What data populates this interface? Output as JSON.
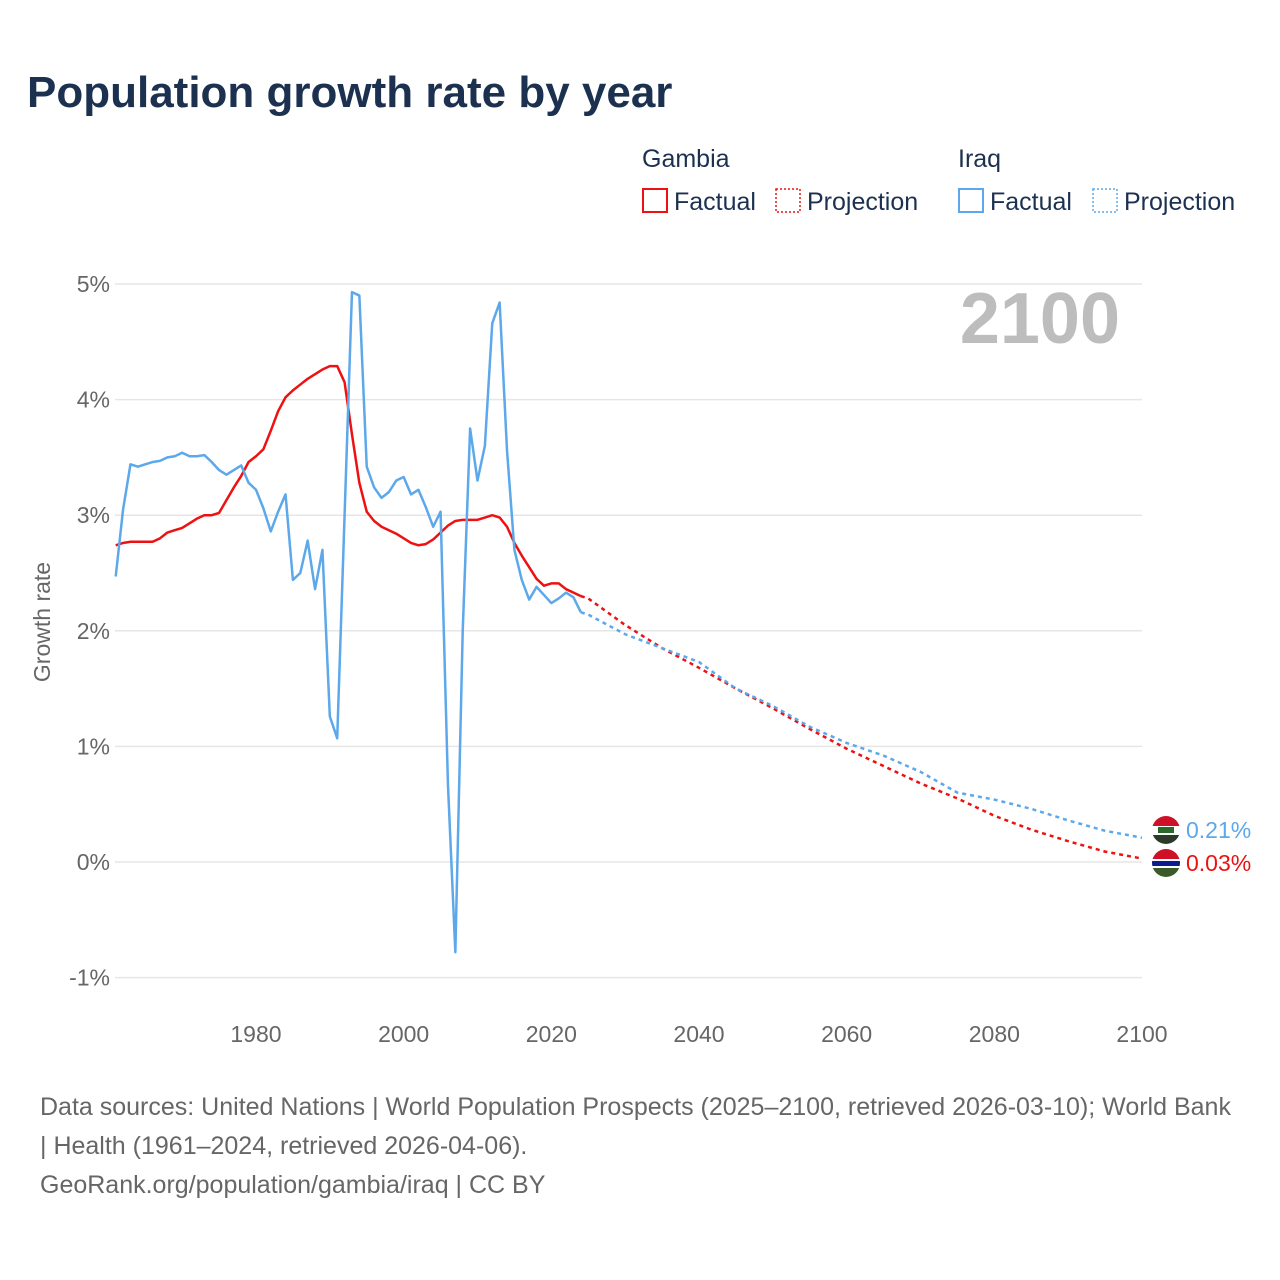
{
  "chart_data": {
    "type": "line",
    "title": "Population growth rate by year",
    "xlabel": "",
    "ylabel": "Growth rate",
    "xlim": [
      1961,
      2100
    ],
    "ylim": [
      -1,
      5
    ],
    "x_ticks": [
      "1980",
      "2000",
      "2020",
      "2040",
      "2060",
      "2080",
      "2100"
    ],
    "y_ticks": [
      "-1%",
      "0%",
      "1%",
      "2%",
      "3%",
      "4%",
      "5%"
    ],
    "grid": true,
    "year_label": "2100",
    "legend": {
      "placement": "top-right",
      "groups": [
        {
          "name": "Gambia",
          "entries": [
            "Factual",
            "Projection"
          ]
        },
        {
          "name": "Iraq",
          "entries": [
            "Factual",
            "Projection"
          ]
        }
      ]
    },
    "series": [
      {
        "name": "Gambia",
        "color": "#ee1111",
        "end_label": "0.03%",
        "factual": {
          "x": [
            1961,
            1962,
            1963,
            1964,
            1965,
            1966,
            1967,
            1968,
            1969,
            1970,
            1971,
            1972,
            1973,
            1974,
            1975,
            1976,
            1977,
            1978,
            1979,
            1980,
            1981,
            1982,
            1983,
            1984,
            1985,
            1986,
            1987,
            1988,
            1989,
            1990,
            1991,
            1992,
            1993,
            1994,
            1995,
            1996,
            1997,
            1998,
            1999,
            2000,
            2001,
            2002,
            2003,
            2004,
            2005,
            2006,
            2007,
            2008,
            2009,
            2010,
            2011,
            2012,
            2013,
            2014,
            2015,
            2016,
            2017,
            2018,
            2019,
            2020,
            2021,
            2022,
            2023,
            2024
          ],
          "y": [
            2.74,
            2.76,
            2.77,
            2.77,
            2.77,
            2.77,
            2.8,
            2.85,
            2.87,
            2.89,
            2.93,
            2.97,
            3.0,
            3.0,
            3.02,
            3.13,
            3.24,
            3.34,
            3.46,
            3.51,
            3.57,
            3.73,
            3.9,
            4.02,
            4.08,
            4.13,
            4.18,
            4.22,
            4.26,
            4.29,
            4.29,
            4.15,
            3.7,
            3.28,
            3.03,
            2.95,
            2.9,
            2.87,
            2.84,
            2.8,
            2.76,
            2.74,
            2.75,
            2.79,
            2.85,
            2.91,
            2.95,
            2.96,
            2.96,
            2.96,
            2.98,
            3.0,
            2.98,
            2.9,
            2.76,
            2.65,
            2.55,
            2.45,
            2.39,
            2.41,
            2.41,
            2.36,
            2.33,
            2.3
          ]
        },
        "projection": {
          "x": [
            2024,
            2025,
            2030,
            2035,
            2040,
            2045,
            2050,
            2055,
            2060,
            2065,
            2070,
            2075,
            2080,
            2085,
            2090,
            2095,
            2100
          ],
          "y": [
            2.3,
            2.28,
            2.05,
            1.85,
            1.68,
            1.5,
            1.33,
            1.15,
            0.98,
            0.83,
            0.68,
            0.55,
            0.4,
            0.28,
            0.18,
            0.09,
            0.03
          ]
        }
      },
      {
        "name": "Iraq",
        "color": "#5ca8ea",
        "end_label": "0.21%",
        "factual": {
          "x": [
            1961,
            1962,
            1963,
            1964,
            1965,
            1966,
            1967,
            1968,
            1969,
            1970,
            1971,
            1972,
            1973,
            1974,
            1975,
            1976,
            1977,
            1978,
            1979,
            1980,
            1981,
            1982,
            1983,
            1984,
            1985,
            1986,
            1987,
            1988,
            1989,
            1990,
            1991,
            1992,
            1993,
            1994,
            1995,
            1996,
            1997,
            1998,
            1999,
            2000,
            2001,
            2002,
            2003,
            2004,
            2005,
            2006,
            2007,
            2008,
            2009,
            2010,
            2011,
            2012,
            2013,
            2014,
            2015,
            2016,
            2017,
            2018,
            2019,
            2020,
            2021,
            2022,
            2023,
            2024
          ],
          "y": [
            2.47,
            3.05,
            3.44,
            3.42,
            3.44,
            3.46,
            3.47,
            3.5,
            3.51,
            3.54,
            3.51,
            3.51,
            3.52,
            3.46,
            3.39,
            3.35,
            3.39,
            3.43,
            3.28,
            3.22,
            3.06,
            2.86,
            3.03,
            3.18,
            2.44,
            2.5,
            2.78,
            2.36,
            2.7,
            1.26,
            1.07,
            3.0,
            4.93,
            4.9,
            3.42,
            3.24,
            3.15,
            3.2,
            3.3,
            3.33,
            3.18,
            3.22,
            3.07,
            2.9,
            3.03,
            0.67,
            -0.78,
            2.0,
            3.75,
            3.3,
            3.6,
            4.66,
            4.84,
            3.56,
            2.7,
            2.44,
            2.27,
            2.38,
            2.31,
            2.24,
            2.28,
            2.33,
            2.29,
            2.16
          ]
        },
        "projection": {
          "x": [
            2024,
            2025,
            2030,
            2035,
            2040,
            2045,
            2050,
            2055,
            2060,
            2065,
            2070,
            2075,
            2080,
            2085,
            2090,
            2095,
            2100
          ],
          "y": [
            2.16,
            2.14,
            1.97,
            1.85,
            1.73,
            1.5,
            1.35,
            1.17,
            1.03,
            0.92,
            0.78,
            0.6,
            0.54,
            0.46,
            0.36,
            0.27,
            0.21
          ]
        }
      }
    ]
  },
  "footer": {
    "sources": "Data sources: United Nations | World Population Prospects (2025–2100, retrieved 2026-03-10); World Bank | Health (1961–2024, retrieved 2026-04-06).",
    "credit": "GeoRank.org/population/gambia/iraq | CC BY"
  }
}
